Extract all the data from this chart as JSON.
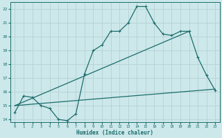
{
  "xlabel": "Humidex (Indice chaleur)",
  "bg_color": "#cce8ea",
  "grid_color": "#b8d4d6",
  "line_color": "#1a6b6b",
  "xlim": [
    -0.5,
    23.5
  ],
  "ylim": [
    13.8,
    22.5
  ],
  "xticks": [
    0,
    1,
    2,
    3,
    4,
    5,
    6,
    7,
    8,
    9,
    10,
    11,
    12,
    13,
    14,
    15,
    16,
    17,
    18,
    19,
    20,
    21,
    22,
    23
  ],
  "yticks": [
    14,
    15,
    16,
    17,
    18,
    19,
    20,
    21,
    22
  ],
  "line1_marked": {
    "x": [
      0,
      1,
      2,
      3,
      4,
      5,
      6,
      7,
      8,
      9,
      10,
      11,
      12,
      13,
      14,
      15,
      16,
      17,
      18,
      19,
      20,
      21,
      22,
      23
    ],
    "y": [
      14.5,
      15.7,
      15.6,
      15.0,
      14.8,
      14.0,
      13.9,
      14.4,
      17.3,
      19.0,
      19.4,
      20.4,
      20.4,
      21.0,
      22.2,
      22.2,
      21.0,
      20.2,
      20.1,
      20.4,
      20.4,
      18.5,
      17.2,
      16.1
    ]
  },
  "line2_flat": {
    "x": [
      0,
      23
    ],
    "y": [
      15.0,
      16.2
    ]
  },
  "line3_diag": {
    "x": [
      0,
      20
    ],
    "y": [
      15.0,
      20.4
    ]
  }
}
